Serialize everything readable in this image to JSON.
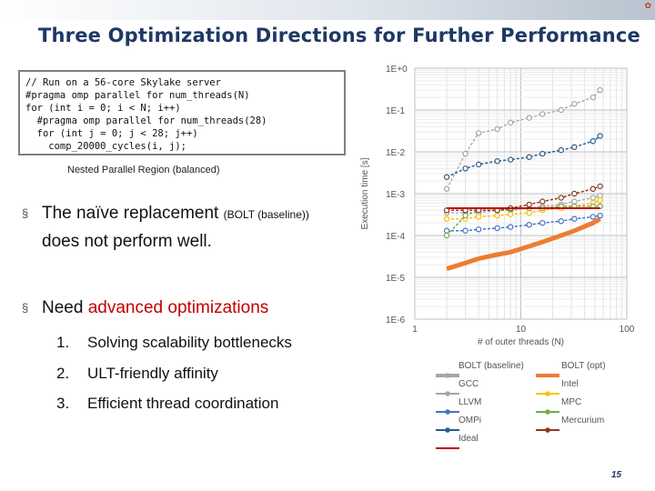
{
  "slide": {
    "title": "Three Optimization Directions for Further Performance",
    "page_number": "15",
    "code_lines": [
      "// Run on a 56-core Skylake server",
      "#pragma omp parallel for num_threads(N)",
      "for (int i = 0; i < N; i++)",
      "  #pragma omp parallel for num_threads(28)",
      "  for (int j = 0; j < 28; j++)",
      "    comp_20000_cycles(i, j);"
    ],
    "code_caption": "Nested Parallel Region (balanced)",
    "bullet1_main": "The naïve replacement ",
    "bullet1_small": "(BOLT (baseline))",
    "bullet1_tail": "does not perform well.",
    "bullet2_pre": "Need ",
    "bullet2_red": "advanced optimizations",
    "subitems": [
      {
        "num": "1.",
        "text": "Solving scalability bottlenecks"
      },
      {
        "num": "2.",
        "text": "ULT-friendly affinity"
      },
      {
        "num": "3.",
        "text": "Efficient thread coordination"
      }
    ],
    "bullet_symbol": "§",
    "colors": {
      "title": "#1f3864",
      "highlight": "#c00000"
    }
  },
  "chart_data": {
    "type": "line",
    "xlabel": "# of outer threads (N)",
    "ylabel": "Execution time [s]",
    "x_scale": "log",
    "y_scale": "log",
    "xlim": [
      1,
      100
    ],
    "ylim": [
      1e-06,
      1
    ],
    "x_ticks": [
      "1",
      "10",
      "100"
    ],
    "y_ticks": [
      "1E+0",
      "1E-1",
      "1E-2",
      "1E-3",
      "1E-4",
      "1E-5",
      "1E-6"
    ],
    "grid": true,
    "legend_position": "bottom",
    "x": [
      2,
      3,
      4,
      6,
      8,
      12,
      16,
      24,
      32,
      48,
      56
    ],
    "series": [
      {
        "name": "BOLT (baseline)",
        "color": "#a5a5a5",
        "marker": "circle",
        "values": [
          0.0013,
          0.009,
          0.028,
          0.035,
          0.05,
          0.065,
          0.08,
          0.1,
          0.14,
          0.2,
          0.3
        ]
      },
      {
        "name": "BOLT (opt)",
        "color": "#ed7d31",
        "marker": "none",
        "values": [
          1.6e-05,
          2.2e-05,
          2.8e-05,
          3.5e-05,
          4e-05,
          5.5e-05,
          7e-05,
          0.0001,
          0.00013,
          0.0002,
          0.00025
        ]
      },
      {
        "name": "GCC",
        "color": "#a5a5a5",
        "marker": "circle",
        "values": [
          0.00035,
          0.00035,
          0.00035,
          0.0004,
          0.0004,
          0.00045,
          0.0005,
          0.00055,
          0.00065,
          0.0008,
          0.0009
        ]
      },
      {
        "name": "Intel",
        "color": "#ffc000",
        "marker": "circle",
        "values": [
          0.00025,
          0.00025,
          0.00028,
          0.0003,
          0.00032,
          0.00035,
          0.0004,
          0.00045,
          0.0005,
          0.0006,
          0.0007
        ]
      },
      {
        "name": "LLVM",
        "color": "#4472c4",
        "marker": "circle",
        "values": [
          0.00013,
          0.00013,
          0.00014,
          0.00015,
          0.00016,
          0.00018,
          0.0002,
          0.00022,
          0.00025,
          0.00028,
          0.0003
        ]
      },
      {
        "name": "MPC",
        "color": "#70ad47",
        "marker": "circle",
        "values": [
          0.0001,
          0.0003,
          0.0004,
          0.0004,
          0.00042,
          0.00045,
          0.00045,
          0.0005,
          0.0005,
          0.0005,
          0.0005
        ]
      },
      {
        "name": "OMPi",
        "color": "#2e5c8a",
        "marker": "circle",
        "values": [
          0.0025,
          0.004,
          0.005,
          0.006,
          0.0065,
          0.0075,
          0.009,
          0.011,
          0.013,
          0.018,
          0.024
        ]
      },
      {
        "name": "Mercurium",
        "color": "#8b3a1f",
        "marker": "circle",
        "values": [
          0.0004,
          0.0004,
          0.0004,
          0.0004,
          0.00045,
          0.00055,
          0.00065,
          0.0008,
          0.001,
          0.0013,
          0.0015
        ]
      },
      {
        "name": "Ideal",
        "color": "#c00000",
        "marker": "none",
        "values": [
          0.00045,
          0.00045,
          0.00045,
          0.00045,
          0.00045,
          0.00045,
          0.00045,
          0.00045,
          0.00045,
          0.00045,
          0.00045
        ]
      }
    ]
  }
}
